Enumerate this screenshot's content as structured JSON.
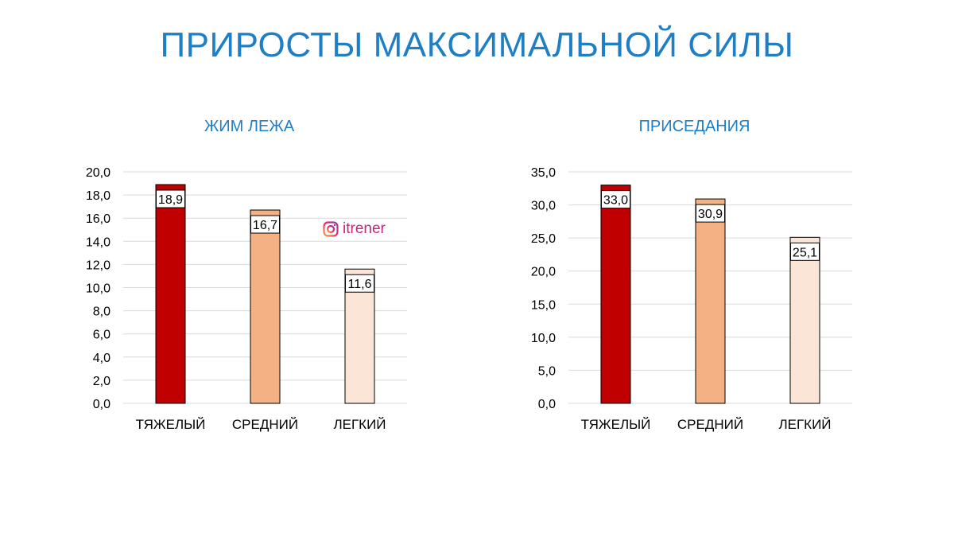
{
  "title": "ПРИРОСТЫ МАКСИМАЛЬНОЙ СИЛЫ",
  "watermark": {
    "icon": "instagram-icon",
    "text": "itrener"
  },
  "colors": {
    "title": "#1f7fc5",
    "heavy": "#c00000",
    "medium": "#f4b183",
    "light": "#fbe5d6",
    "watermark": "#c8247f"
  },
  "chart_data": [
    {
      "type": "bar",
      "title": "ЖИМ ЛЕЖА",
      "categories": [
        "ТЯЖЕЛЫЙ",
        "СРЕДНИЙ",
        "ЛЕГКИЙ"
      ],
      "values": [
        18.9,
        16.7,
        11.6
      ],
      "value_labels": [
        "18,9",
        "16,7",
        "11,6"
      ],
      "bar_colors": [
        "#c00000",
        "#f4b183",
        "#fbe5d6"
      ],
      "ylim": [
        0,
        20
      ],
      "yticks": [
        "0,0",
        "2,0",
        "4,0",
        "6,0",
        "8,0",
        "10,0",
        "12,0",
        "14,0",
        "16,0",
        "18,0",
        "20,0"
      ],
      "xlabel": "",
      "ylabel": "",
      "grid": true,
      "legend": "none"
    },
    {
      "type": "bar",
      "title": "ПРИСЕДАНИЯ",
      "categories": [
        "ТЯЖЕЛЫЙ",
        "СРЕДНИЙ",
        "ЛЕГКИЙ"
      ],
      "values": [
        33.0,
        30.9,
        25.1
      ],
      "value_labels": [
        "33,0",
        "30,9",
        "25,1"
      ],
      "bar_colors": [
        "#c00000",
        "#f4b183",
        "#fbe5d6"
      ],
      "ylim": [
        0,
        35
      ],
      "yticks": [
        "0,0",
        "5,0",
        "10,0",
        "15,0",
        "20,0",
        "25,0",
        "30,0",
        "35,0"
      ],
      "xlabel": "",
      "ylabel": "",
      "grid": true,
      "legend": "none"
    }
  ]
}
